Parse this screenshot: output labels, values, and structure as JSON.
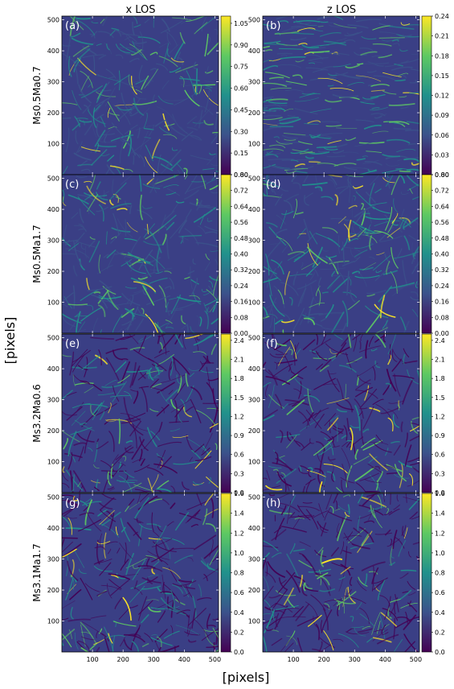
{
  "chart_data": {
    "type": "heatmap",
    "title": "",
    "xlabel": "[pixels]",
    "ylabel": "[pixels]",
    "columns": [
      "x LOS",
      "z LOS"
    ],
    "rows": [
      "Ms0.5Ma0.7",
      "Ms0.5Ma1.7",
      "Ms3.2Ma0.6",
      "Ms3.1Ma1.7"
    ],
    "xlim": [
      0,
      512
    ],
    "ylim": [
      0,
      512
    ],
    "x_ticks": [
      100,
      200,
      300,
      400,
      500
    ],
    "y_ticks": [
      100,
      200,
      300,
      400,
      500
    ],
    "colormap": "viridis",
    "colormap_stops": [
      "#440154",
      "#3b528b",
      "#21918c",
      "#5ec962",
      "#fde725"
    ],
    "grid": false,
    "panels": [
      {
        "label": "(a)",
        "row": 0,
        "col": 0,
        "colorbar_ticks": [
          "0.00",
          "0.15",
          "0.30",
          "0.45",
          "0.60",
          "0.75",
          "0.90",
          "1.05"
        ],
        "vmin": 0,
        "vmax": 1.1
      },
      {
        "label": "(b)",
        "row": 0,
        "col": 1,
        "colorbar_ticks": [
          "0.00",
          "0.03",
          "0.06",
          "0.09",
          "0.12",
          "0.15",
          "0.18",
          "0.21",
          "0.24"
        ],
        "vmin": 0,
        "vmax": 0.24
      },
      {
        "label": "(c)",
        "row": 1,
        "col": 0,
        "colorbar_ticks": [
          "0.00",
          "0.08",
          "0.16",
          "0.24",
          "0.32",
          "0.40",
          "0.48",
          "0.56",
          "0.64",
          "0.72",
          "0.80"
        ],
        "vmin": 0,
        "vmax": 0.8
      },
      {
        "label": "(d)",
        "row": 1,
        "col": 1,
        "colorbar_ticks": [
          "0.00",
          "0.08",
          "0.16",
          "0.24",
          "0.32",
          "0.40",
          "0.48",
          "0.56",
          "0.64",
          "0.72",
          "0.80"
        ],
        "vmin": 0,
        "vmax": 0.8
      },
      {
        "label": "(e)",
        "row": 2,
        "col": 0,
        "colorbar_ticks": [
          "0.0",
          "0.3",
          "0.6",
          "0.9",
          "1.2",
          "1.5",
          "1.8",
          "2.1",
          "2.4"
        ],
        "vmin": 0,
        "vmax": 2.5
      },
      {
        "label": "(f)",
        "row": 2,
        "col": 1,
        "colorbar_ticks": [
          "0.0",
          "0.3",
          "0.6",
          "0.9",
          "1.2",
          "1.5",
          "1.8",
          "2.1",
          "2.4"
        ],
        "vmin": 0,
        "vmax": 2.5
      },
      {
        "label": "(g)",
        "row": 3,
        "col": 0,
        "colorbar_ticks": [
          "0.0",
          "0.2",
          "0.4",
          "0.6",
          "0.8",
          "1.0",
          "1.2",
          "1.4",
          "1.6"
        ],
        "vmin": 0,
        "vmax": 1.6
      },
      {
        "label": "(h)",
        "row": 3,
        "col": 1,
        "colorbar_ticks": [
          "0.0",
          "0.2",
          "0.4",
          "0.6",
          "0.8",
          "1.0",
          "1.2",
          "1.4",
          "1.6"
        ],
        "vmin": 0,
        "vmax": 1.6
      }
    ]
  }
}
